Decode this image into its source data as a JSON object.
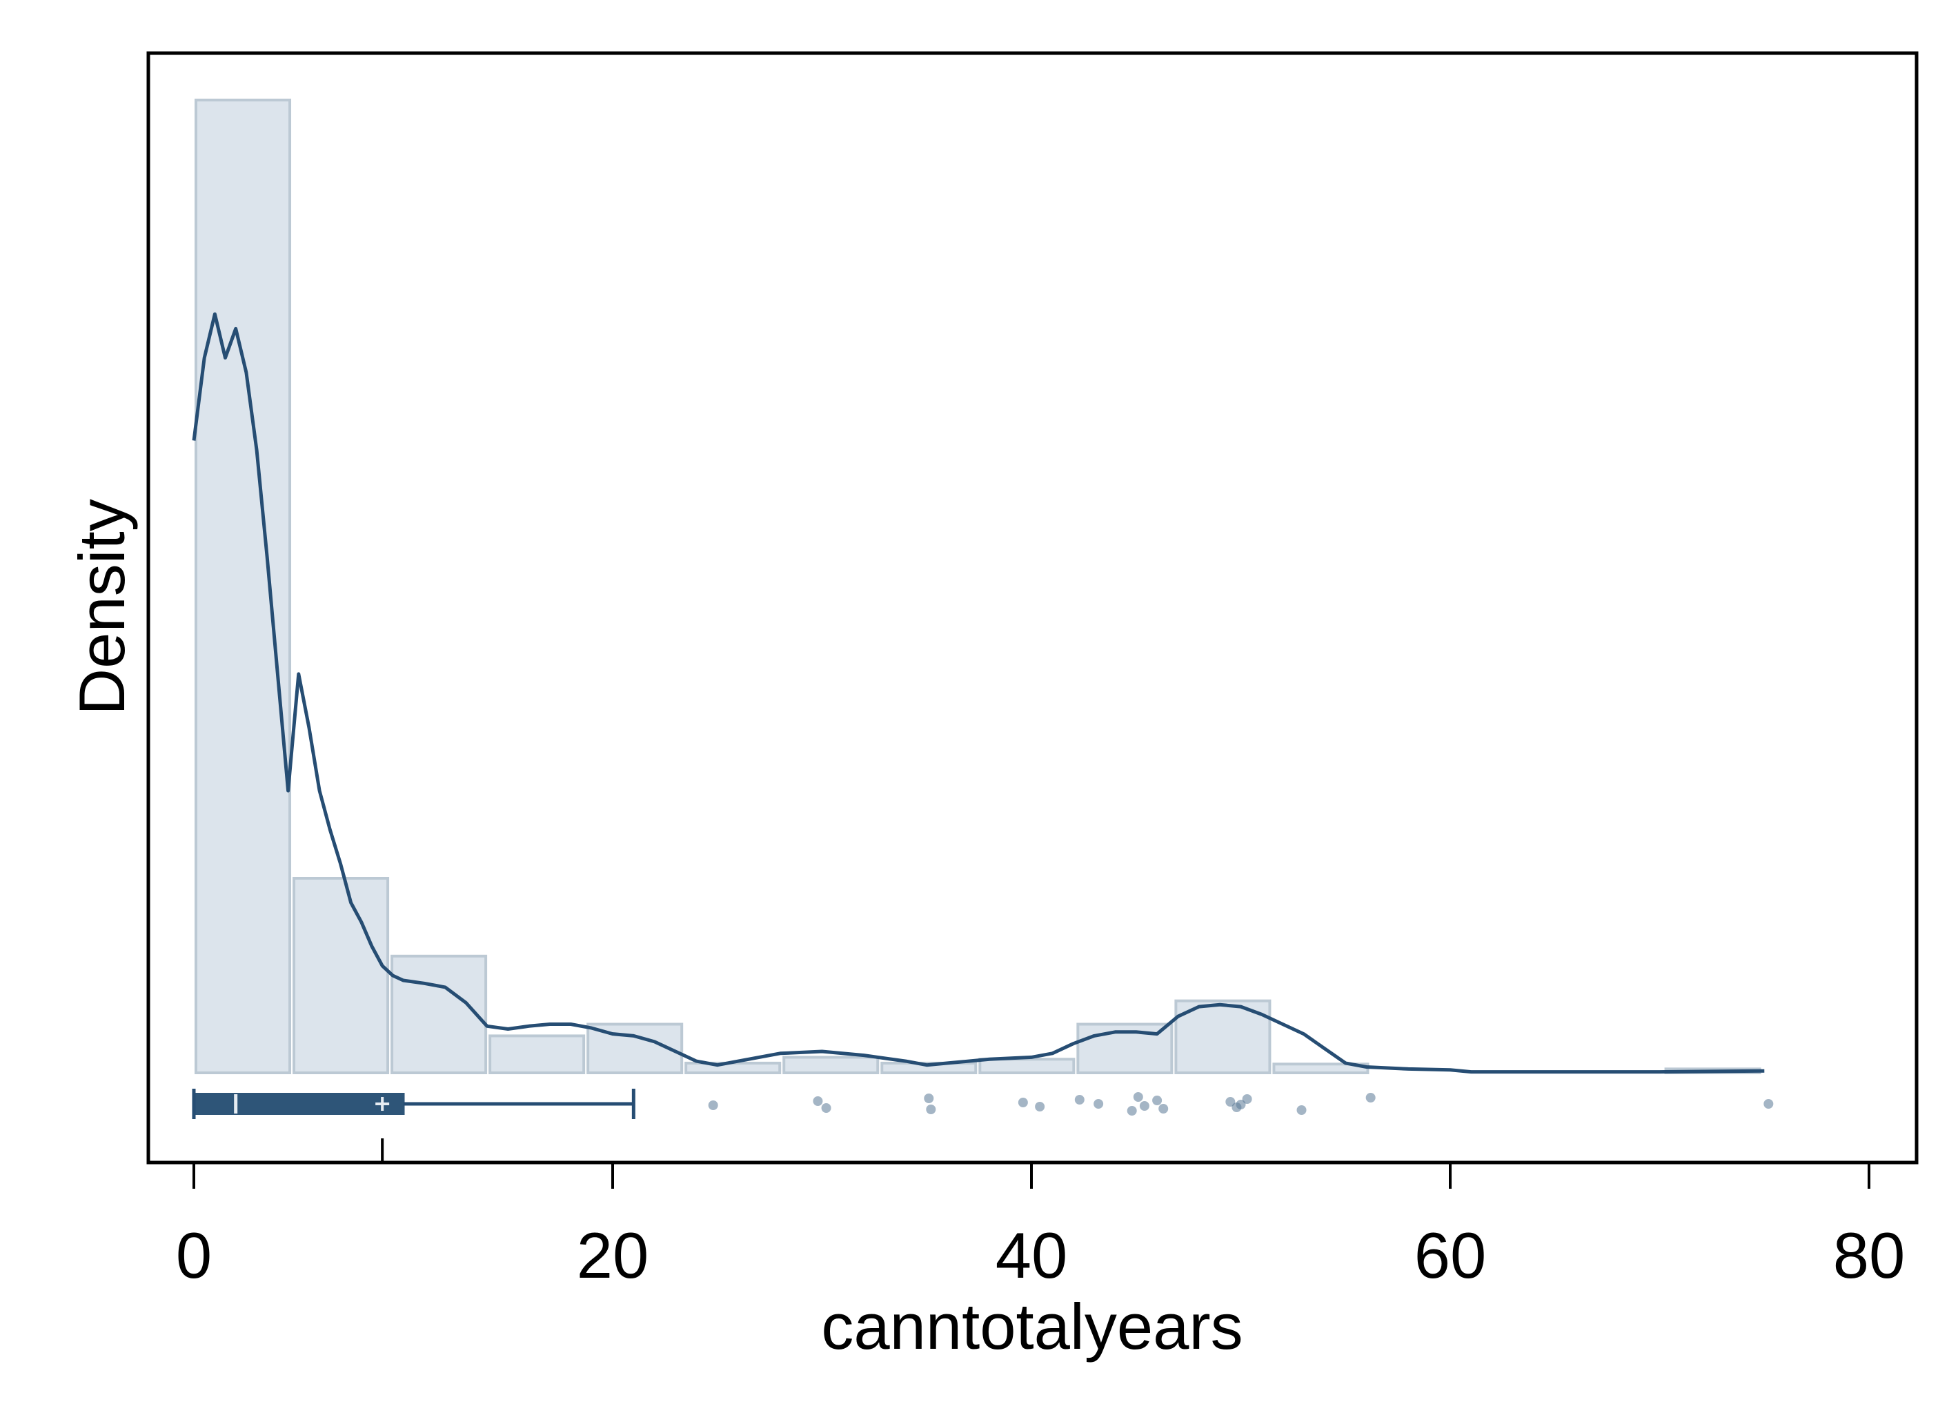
{
  "chart_data": {
    "type": "bar",
    "title": "",
    "xlabel": "canntotalyears",
    "ylabel": "Density",
    "xlim": [
      -2,
      82
    ],
    "xticks": [
      {
        "value": 0,
        "label": "0"
      },
      {
        "value": 20,
        "label": "20"
      },
      {
        "value": 40,
        "label": "40"
      },
      {
        "value": 60,
        "label": "60"
      },
      {
        "value": 80,
        "label": "80"
      }
    ],
    "y_ticks_shown": false,
    "grid": false,
    "legend": "none",
    "colors": {
      "bar_fill": "#dce4ec",
      "bar_stroke": "#bcc9d4",
      "line": "#264d73",
      "box": "#2e5578",
      "points": "#5a7896"
    },
    "histogram": {
      "bin_width": 4.68,
      "bins": [
        {
          "start": 0.0,
          "end": 4.68,
          "density": 0.1
        },
        {
          "start": 4.68,
          "end": 9.36,
          "density": 0.02
        },
        {
          "start": 9.36,
          "end": 14.04,
          "density": 0.012
        },
        {
          "start": 14.04,
          "end": 18.72,
          "density": 0.0038
        },
        {
          "start": 18.72,
          "end": 23.4,
          "density": 0.005
        },
        {
          "start": 23.4,
          "end": 28.08,
          "density": 0.001
        },
        {
          "start": 28.08,
          "end": 32.76,
          "density": 0.0016
        },
        {
          "start": 32.76,
          "end": 37.44,
          "density": 0.001
        },
        {
          "start": 37.44,
          "end": 42.12,
          "density": 0.0014
        },
        {
          "start": 42.12,
          "end": 46.8,
          "density": 0.005
        },
        {
          "start": 46.8,
          "end": 51.48,
          "density": 0.0074
        },
        {
          "start": 51.48,
          "end": 56.16,
          "density": 0.0009
        },
        {
          "start": 56.16,
          "end": 60.84,
          "density": 0.0
        },
        {
          "start": 60.84,
          "end": 65.52,
          "density": 0.0
        },
        {
          "start": 65.52,
          "end": 70.2,
          "density": 0.0
        },
        {
          "start": 70.2,
          "end": 74.88,
          "density": 0.0004
        }
      ]
    },
    "kde": {
      "x": [
        0,
        0.5,
        1,
        1.5,
        2,
        2.5,
        3,
        3.5,
        4,
        4.5,
        5,
        5.5,
        6,
        6.5,
        7,
        7.5,
        8,
        8.5,
        9,
        9.5,
        10,
        11,
        12,
        13,
        14,
        15,
        16,
        17,
        18,
        19,
        20,
        21,
        22,
        23,
        24,
        25,
        26,
        28,
        30,
        32,
        34,
        35,
        36,
        38,
        40,
        41,
        42,
        43,
        44,
        45,
        46,
        47,
        48,
        49,
        50,
        51,
        52,
        53,
        54,
        55,
        56,
        58,
        60,
        61,
        65,
        70,
        75
      ],
      "y": [
        0.065,
        0.0735,
        0.078,
        0.0735,
        0.0765,
        0.072,
        0.064,
        0.053,
        0.041,
        0.029,
        0.041,
        0.0355,
        0.029,
        0.025,
        0.0215,
        0.0175,
        0.0155,
        0.013,
        0.011,
        0.01,
        0.0095,
        0.0092,
        0.0088,
        0.0072,
        0.0048,
        0.0045,
        0.0048,
        0.005,
        0.005,
        0.0046,
        0.004,
        0.0038,
        0.0032,
        0.0022,
        0.0012,
        0.0008,
        0.0012,
        0.002,
        0.0022,
        0.0018,
        0.0012,
        0.0008,
        0.001,
        0.0014,
        0.0016,
        0.002,
        0.003,
        0.0038,
        0.0042,
        0.0042,
        0.004,
        0.0058,
        0.0068,
        0.007,
        0.0068,
        0.006,
        0.005,
        0.004,
        0.0025,
        0.001,
        0.0006,
        0.0004,
        0.0003,
        0.0001,
        0.0001,
        0.0001,
        0.0002
      ]
    },
    "boxplot": {
      "min": 0,
      "q1": 0,
      "median": 2,
      "mean": 9,
      "q3": 10,
      "whisker_high": 21,
      "outliers": [
        24.8,
        29.8,
        30.2,
        35.1,
        35.2,
        39.6,
        40.4,
        42.3,
        43.2,
        44.8,
        45.1,
        45.4,
        46.0,
        46.3,
        49.5,
        49.8,
        50.0,
        50.3,
        52.9,
        56.2,
        75.2
      ]
    }
  }
}
